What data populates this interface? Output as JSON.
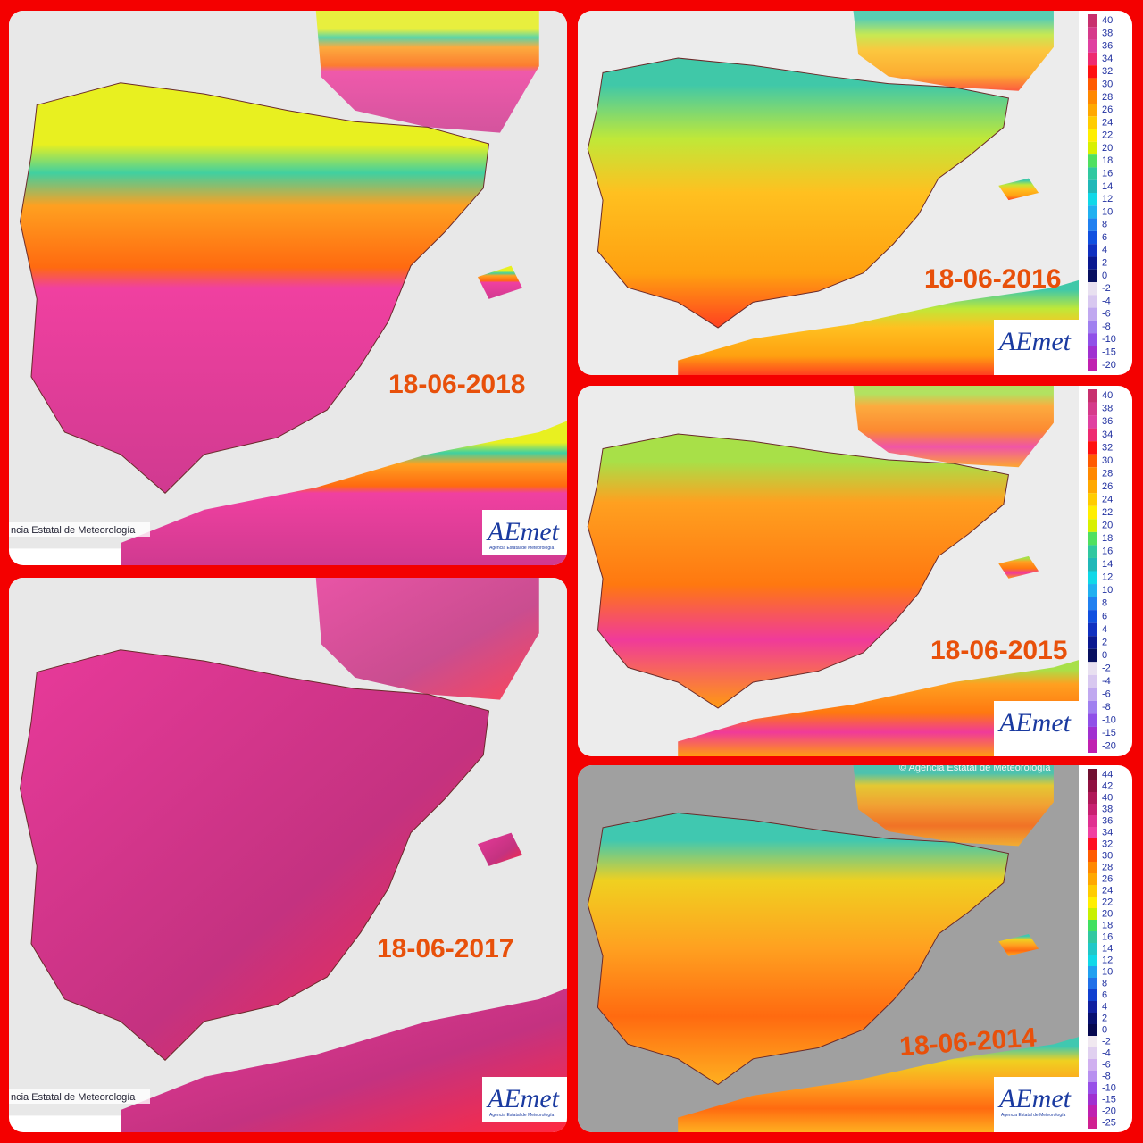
{
  "panels": [
    {
      "date": "18-06-2018",
      "attribution": "ncia Estatal de Meteorología",
      "logo": "AEmet",
      "logo_sub": "Agencia Estatal de Meteorología"
    },
    {
      "date": "18-06-2017",
      "attribution": "ncia Estatal de Meteorología",
      "logo": "AEmet",
      "logo_sub": "Agencia Estatal de Meteorología"
    },
    {
      "date": "18-06-2016",
      "logo": "AEmet"
    },
    {
      "date": "18-06-2015",
      "logo": "AEmet"
    },
    {
      "date": "18-06-2014",
      "attribution": "© Agencia Estatal de Meteorología",
      "logo": "AEmet",
      "logo_sub": "Agencia Estatal de Meteorología"
    }
  ],
  "legends": [
    {
      "labels": [
        40,
        38,
        36,
        34,
        32,
        30,
        28,
        26,
        24,
        22,
        20,
        18,
        16,
        14,
        12,
        10,
        8,
        6,
        4,
        2,
        0,
        -2,
        -4,
        -6,
        -8,
        -10,
        -15,
        -20
      ],
      "colors": [
        "#c8306e",
        "#d63a8a",
        "#e040a0",
        "#ee2a70",
        "#ff1010",
        "#ff5a00",
        "#ff8800",
        "#ffa800",
        "#ffcc00",
        "#ffee00",
        "#d8f000",
        "#50e060",
        "#30c8a0",
        "#20b8b8",
        "#10d8e8",
        "#20b0f0",
        "#2080f0",
        "#1050e0",
        "#1030c0",
        "#0a1890",
        "#081060",
        "#e8e0f0",
        "#d8c8f0",
        "#c0a8f0",
        "#a080f0",
        "#9050e8",
        "#a030d0",
        "#c020b0"
      ]
    },
    {
      "labels": [
        40,
        38,
        36,
        34,
        32,
        30,
        28,
        26,
        24,
        22,
        20,
        18,
        16,
        14,
        12,
        10,
        8,
        6,
        4,
        2,
        0,
        -2,
        -4,
        -6,
        -8,
        -10,
        -15,
        -20
      ],
      "colors": [
        "#c8306e",
        "#d63a8a",
        "#e040a0",
        "#ee2a70",
        "#ff1010",
        "#ff5a00",
        "#ff8800",
        "#ffa800",
        "#ffcc00",
        "#ffee00",
        "#d8f000",
        "#50e060",
        "#30c8a0",
        "#20b8b8",
        "#10d8e8",
        "#20b0f0",
        "#2080f0",
        "#1050e0",
        "#1030c0",
        "#0a1890",
        "#081060",
        "#e8e0f0",
        "#d8c8f0",
        "#c0a8f0",
        "#a080f0",
        "#9050e8",
        "#a030d0",
        "#c020b0"
      ]
    },
    {
      "labels": [
        44,
        42,
        40,
        38,
        36,
        34,
        32,
        30,
        28,
        26,
        24,
        22,
        20,
        18,
        16,
        14,
        12,
        10,
        8,
        6,
        4,
        2,
        0,
        -2,
        -4,
        -6,
        -8,
        -10,
        -15,
        -20,
        -25
      ],
      "colors": [
        "#701030",
        "#901040",
        "#b01858",
        "#c82070",
        "#e03090",
        "#f040a0",
        "#ff1020",
        "#ff5a00",
        "#ff8800",
        "#ffa800",
        "#ffcc00",
        "#ffee00",
        "#c8f000",
        "#40e060",
        "#30c8a0",
        "#20c8c8",
        "#10d8e8",
        "#20a0f0",
        "#2070e8",
        "#1040d0",
        "#1020a0",
        "#081070",
        "#060850",
        "#f0e8f0",
        "#e0d0f0",
        "#d0b0f0",
        "#b890f0",
        "#9850e8",
        "#a030d0",
        "#c020b0",
        "#d02090"
      ]
    }
  ]
}
